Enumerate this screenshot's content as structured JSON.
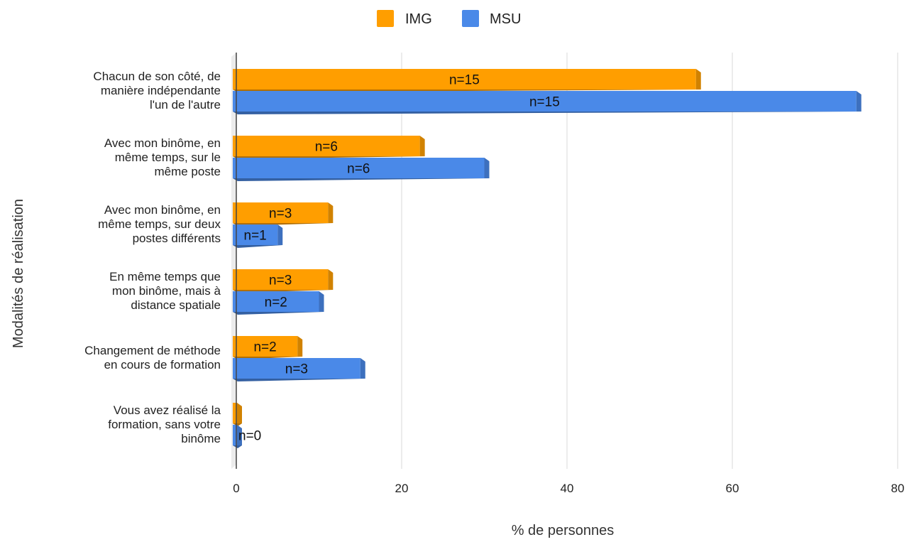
{
  "chart_data": {
    "type": "bar",
    "orientation": "horizontal",
    "xlabel": "% de personnes",
    "ylabel": "Modalités de réalisation",
    "xlim": [
      0,
      80
    ],
    "xticks": [
      0,
      20,
      40,
      60,
      80
    ],
    "grid": true,
    "legend_position": "top",
    "categories": [
      [
        "Chacun de son côté, de",
        "manière indépendante",
        "l'un de l'autre"
      ],
      [
        "Avec mon binôme, en",
        "même temps, sur le",
        "même poste"
      ],
      [
        "Avec mon binôme, en",
        "même temps, sur deux",
        "postes différents"
      ],
      [
        "En même temps que",
        "mon binôme, mais à",
        "distance spatiale"
      ],
      [
        "Changement de méthode",
        "en cours de formation"
      ],
      [
        "Vous avez réalisé la",
        "formation, sans votre",
        "binôme"
      ]
    ],
    "series": [
      {
        "name": "IMG",
        "color": "#ff9e00",
        "values": [
          55.6,
          22.2,
          11.1,
          11.1,
          7.4,
          0
        ],
        "labels": [
          "n=15",
          "n=6",
          "n=3",
          "n=3",
          "n=2",
          ""
        ]
      },
      {
        "name": "MSU",
        "color": "#4a89e8",
        "values": [
          75.0,
          30.0,
          5.0,
          10.0,
          15.0,
          0
        ],
        "labels": [
          "n=15",
          "n=6",
          "n=1",
          "n=2",
          "n=3",
          "n=0"
        ]
      }
    ]
  }
}
